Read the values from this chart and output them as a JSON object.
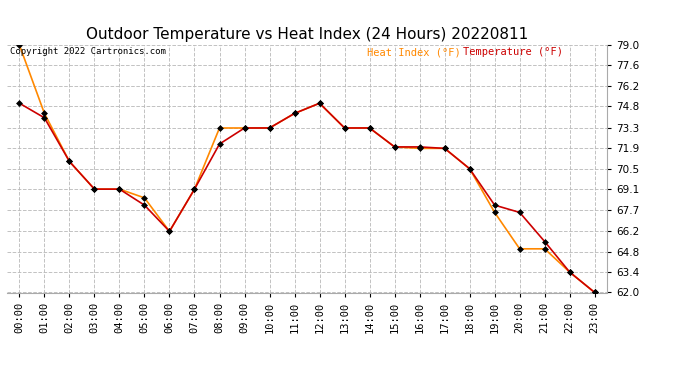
{
  "title": "Outdoor Temperature vs Heat Index (24 Hours) 20220811",
  "copyright": "Copyright 2022 Cartronics.com",
  "legend_heat": "Heat Index (°F)",
  "legend_temp": "Temperature (°F)",
  "hours": [
    "00:00",
    "01:00",
    "02:00",
    "03:00",
    "04:00",
    "05:00",
    "06:00",
    "07:00",
    "08:00",
    "09:00",
    "10:00",
    "11:00",
    "12:00",
    "13:00",
    "14:00",
    "15:00",
    "16:00",
    "17:00",
    "18:00",
    "19:00",
    "20:00",
    "21:00",
    "22:00",
    "23:00"
  ],
  "temperature": [
    75.0,
    74.0,
    71.0,
    69.1,
    69.1,
    68.0,
    66.2,
    69.1,
    72.2,
    73.3,
    73.3,
    74.3,
    75.0,
    73.3,
    73.3,
    72.0,
    72.0,
    71.9,
    70.5,
    68.0,
    67.5,
    65.5,
    63.4,
    62.0
  ],
  "heat_index": [
    79.0,
    74.3,
    71.0,
    69.1,
    69.1,
    68.5,
    66.2,
    69.1,
    73.3,
    73.3,
    73.3,
    74.3,
    75.0,
    73.3,
    73.3,
    72.0,
    71.9,
    71.9,
    70.5,
    67.5,
    65.0,
    65.0,
    63.4,
    62.0
  ],
  "temp_color": "#cc0000",
  "heat_color": "#ff8800",
  "marker": "D",
  "markersize": 3,
  "ylim_min": 62.0,
  "ylim_max": 79.0,
  "yticks": [
    62.0,
    63.4,
    64.8,
    66.2,
    67.7,
    69.1,
    70.5,
    71.9,
    73.3,
    74.8,
    76.2,
    77.6,
    79.0
  ],
  "background_color": "#ffffff",
  "grid_color": "#bbbbbb",
  "title_fontsize": 11,
  "tick_fontsize": 7.5
}
